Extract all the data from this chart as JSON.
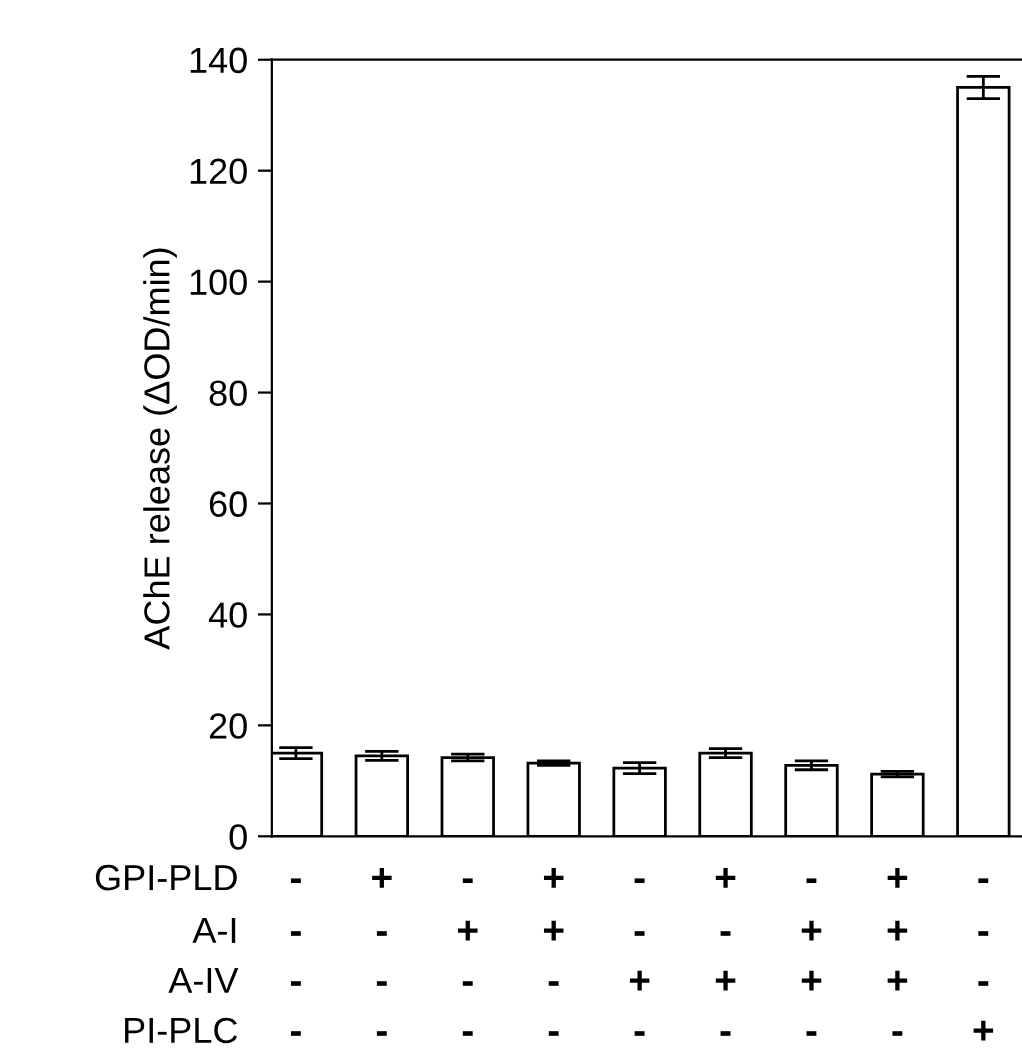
{
  "chart_data": {
    "type": "bar",
    "ylabel": "AChE release (ΔOD/min)",
    "categories": [
      "-\n-\n-\n-",
      "+\n-\n-\n-",
      "-\n+\n-\n-",
      "+\n+\n-\n-",
      "-\n-\n+\n-",
      "+\n-\n+\n-",
      "-\n+\n+\n-",
      "+\n+\n+\n-",
      "-\n-\n-\n+"
    ],
    "values": [
      15,
      14.5,
      14.2,
      13.2,
      12.3,
      15,
      12.8,
      11.2,
      135
    ],
    "errors": [
      1,
      0.8,
      0.6,
      0.4,
      1,
      0.8,
      0.8,
      0.5,
      2
    ],
    "color": "#ffffff",
    "annotations": [
      "GPI-PLD",
      "A-I",
      "A-IV",
      "PI-PLC"
    ],
    "ylim": [
      0,
      140
    ],
    "yticks": [
      0,
      20,
      40,
      60,
      80,
      100,
      120,
      140
    ],
    "grid": false
  }
}
